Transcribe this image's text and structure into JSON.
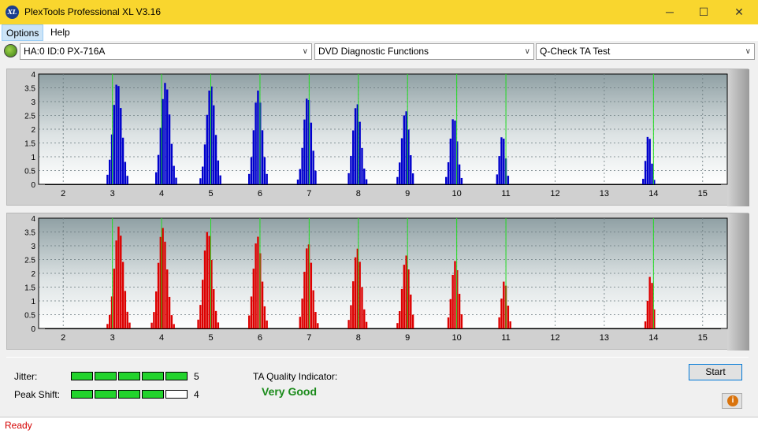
{
  "window": {
    "app_icon_text": "XL",
    "title": "PlexTools Professional XL V3.16",
    "minimize_glyph": "─",
    "maximize_glyph": "☐",
    "close_glyph": "✕"
  },
  "menu": {
    "options": "Options",
    "help": "Help"
  },
  "toolbar": {
    "drive": "HA:0 ID:0  PX-716A",
    "function": "DVD Diagnostic Functions",
    "test": "Q-Check TA Test",
    "arrow": "∨"
  },
  "colors": {
    "top_series": "#0000cc",
    "bottom_series": "#dd0000",
    "marker": "#22dd22",
    "title_bar": "#f9d62e",
    "good": "#1a8a1a"
  },
  "chart_data": [
    {
      "type": "bar",
      "name": "top",
      "xlim": [
        1.5,
        15.5
      ],
      "ylim": [
        0,
        4
      ],
      "x_ticks": [
        "2",
        "3",
        "4",
        "5",
        "6",
        "7",
        "8",
        "9",
        "10",
        "11",
        "12",
        "13",
        "14",
        "15"
      ],
      "y_ticks": [
        "0",
        "0.5",
        "1",
        "1.5",
        "2",
        "2.5",
        "3",
        "3.5",
        "4"
      ],
      "markers": [
        3.0,
        4.0,
        5.0,
        6.0,
        7.0,
        8.0,
        9.0,
        10.0,
        11.0,
        14.0
      ],
      "peaks": [
        {
          "center": 3.1,
          "height": 3.7,
          "width": 0.3
        },
        {
          "center": 4.08,
          "height": 3.7,
          "width": 0.3
        },
        {
          "center": 5.0,
          "height": 3.6,
          "width": 0.29
        },
        {
          "center": 5.96,
          "height": 3.4,
          "width": 0.28
        },
        {
          "center": 6.97,
          "height": 3.2,
          "width": 0.27
        },
        {
          "center": 7.97,
          "height": 2.95,
          "width": 0.27
        },
        {
          "center": 8.96,
          "height": 2.7,
          "width": 0.25
        },
        {
          "center": 9.94,
          "height": 2.45,
          "width": 0.24
        },
        {
          "center": 10.93,
          "height": 1.8,
          "width": 0.2
        },
        {
          "center": 13.9,
          "height": 1.85,
          "width": 0.17
        }
      ]
    },
    {
      "type": "bar",
      "name": "bottom",
      "xlim": [
        1.5,
        15.5
      ],
      "ylim": [
        0,
        4
      ],
      "x_ticks": [
        "2",
        "3",
        "4",
        "5",
        "6",
        "7",
        "8",
        "9",
        "10",
        "11",
        "12",
        "13",
        "14",
        "15"
      ],
      "y_ticks": [
        "0",
        "0.5",
        "1",
        "1.5",
        "2",
        "2.5",
        "3",
        "3.5",
        "4"
      ],
      "markers": [
        3.0,
        4.0,
        5.0,
        6.0,
        7.0,
        8.0,
        9.0,
        10.0,
        11.0,
        14.0
      ],
      "peaks": [
        {
          "center": 3.13,
          "height": 3.7,
          "width": 0.3
        },
        {
          "center": 4.02,
          "height": 3.65,
          "width": 0.3
        },
        {
          "center": 4.94,
          "height": 3.55,
          "width": 0.29
        },
        {
          "center": 5.95,
          "height": 3.35,
          "width": 0.28
        },
        {
          "center": 6.98,
          "height": 3.1,
          "width": 0.27
        },
        {
          "center": 7.98,
          "height": 2.9,
          "width": 0.27
        },
        {
          "center": 8.97,
          "height": 2.65,
          "width": 0.25
        },
        {
          "center": 9.97,
          "height": 2.45,
          "width": 0.24
        },
        {
          "center": 10.97,
          "height": 1.75,
          "width": 0.2
        },
        {
          "center": 13.94,
          "height": 1.95,
          "width": 0.17
        }
      ]
    }
  ],
  "results": {
    "jitter_label": "Jitter:",
    "jitter_value": "5",
    "jitter_level": 5,
    "peak_shift_label": "Peak Shift:",
    "peak_shift_value": "4",
    "peak_shift_level": 4,
    "ta_label": "TA Quality Indicator:",
    "ta_value": "Very Good"
  },
  "buttons": {
    "start": "Start",
    "info_glyph": "i"
  },
  "status": {
    "text": "Ready"
  }
}
